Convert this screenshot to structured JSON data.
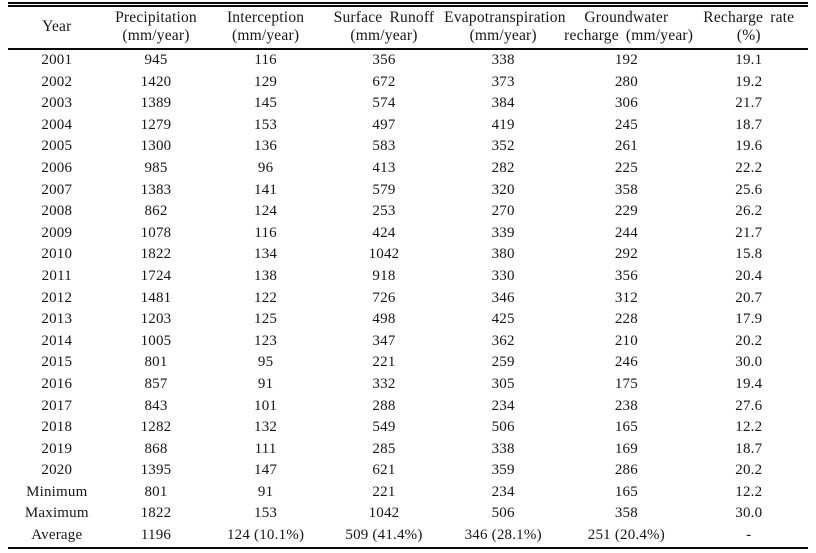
{
  "table": {
    "columns": [
      {
        "line1": "Year",
        "line2": ""
      },
      {
        "line1": "Precipitation",
        "line2": "(mm/year)"
      },
      {
        "line1": "Interception",
        "line2": "(mm/year)"
      },
      {
        "line1": "Surface Runoff",
        "line2": "(mm/year)"
      },
      {
        "line1": "Evapotranspiration",
        "line2": "(mm/year)"
      },
      {
        "line1": "Groundwater",
        "line2": "recharge (mm/year)"
      },
      {
        "line1": "Recharge rate",
        "line2": "(%)"
      }
    ],
    "rows": [
      [
        "2001",
        "945",
        "116",
        "356",
        "338",
        "192",
        "19.1"
      ],
      [
        "2002",
        "1420",
        "129",
        "672",
        "373",
        "280",
        "19.2"
      ],
      [
        "2003",
        "1389",
        "145",
        "574",
        "384",
        "306",
        "21.7"
      ],
      [
        "2004",
        "1279",
        "153",
        "497",
        "419",
        "245",
        "18.7"
      ],
      [
        "2005",
        "1300",
        "136",
        "583",
        "352",
        "261",
        "19.6"
      ],
      [
        "2006",
        "985",
        "96",
        "413",
        "282",
        "225",
        "22.2"
      ],
      [
        "2007",
        "1383",
        "141",
        "579",
        "320",
        "358",
        "25.6"
      ],
      [
        "2008",
        "862",
        "124",
        "253",
        "270",
        "229",
        "26.2"
      ],
      [
        "2009",
        "1078",
        "116",
        "424",
        "339",
        "244",
        "21.7"
      ],
      [
        "2010",
        "1822",
        "134",
        "1042",
        "380",
        "292",
        "15.8"
      ],
      [
        "2011",
        "1724",
        "138",
        "918",
        "330",
        "356",
        "20.4"
      ],
      [
        "2012",
        "1481",
        "122",
        "726",
        "346",
        "312",
        "20.7"
      ],
      [
        "2013",
        "1203",
        "125",
        "498",
        "425",
        "228",
        "17.9"
      ],
      [
        "2014",
        "1005",
        "123",
        "347",
        "362",
        "210",
        "20.2"
      ],
      [
        "2015",
        "801",
        "95",
        "221",
        "259",
        "246",
        "30.0"
      ],
      [
        "2016",
        "857",
        "91",
        "332",
        "305",
        "175",
        "19.4"
      ],
      [
        "2017",
        "843",
        "101",
        "288",
        "234",
        "238",
        "27.6"
      ],
      [
        "2018",
        "1282",
        "132",
        "549",
        "506",
        "165",
        "12.2"
      ],
      [
        "2019",
        "868",
        "111",
        "285",
        "338",
        "169",
        "18.7"
      ],
      [
        "2020",
        "1395",
        "147",
        "621",
        "359",
        "286",
        "20.2"
      ],
      [
        "Minimum",
        "801",
        "91",
        "221",
        "234",
        "165",
        "12.2"
      ],
      [
        "Maximum",
        "1822",
        "153",
        "1042",
        "506",
        "358",
        "30.0"
      ],
      [
        "Average",
        "1196",
        "124 (10.1%)",
        "509 (41.4%)",
        "346 (28.1%)",
        "251 (20.4%)",
        "-"
      ]
    ]
  },
  "colors": {
    "text": "#161616",
    "rule": "#0a0a0a",
    "background": "#ffffff"
  }
}
